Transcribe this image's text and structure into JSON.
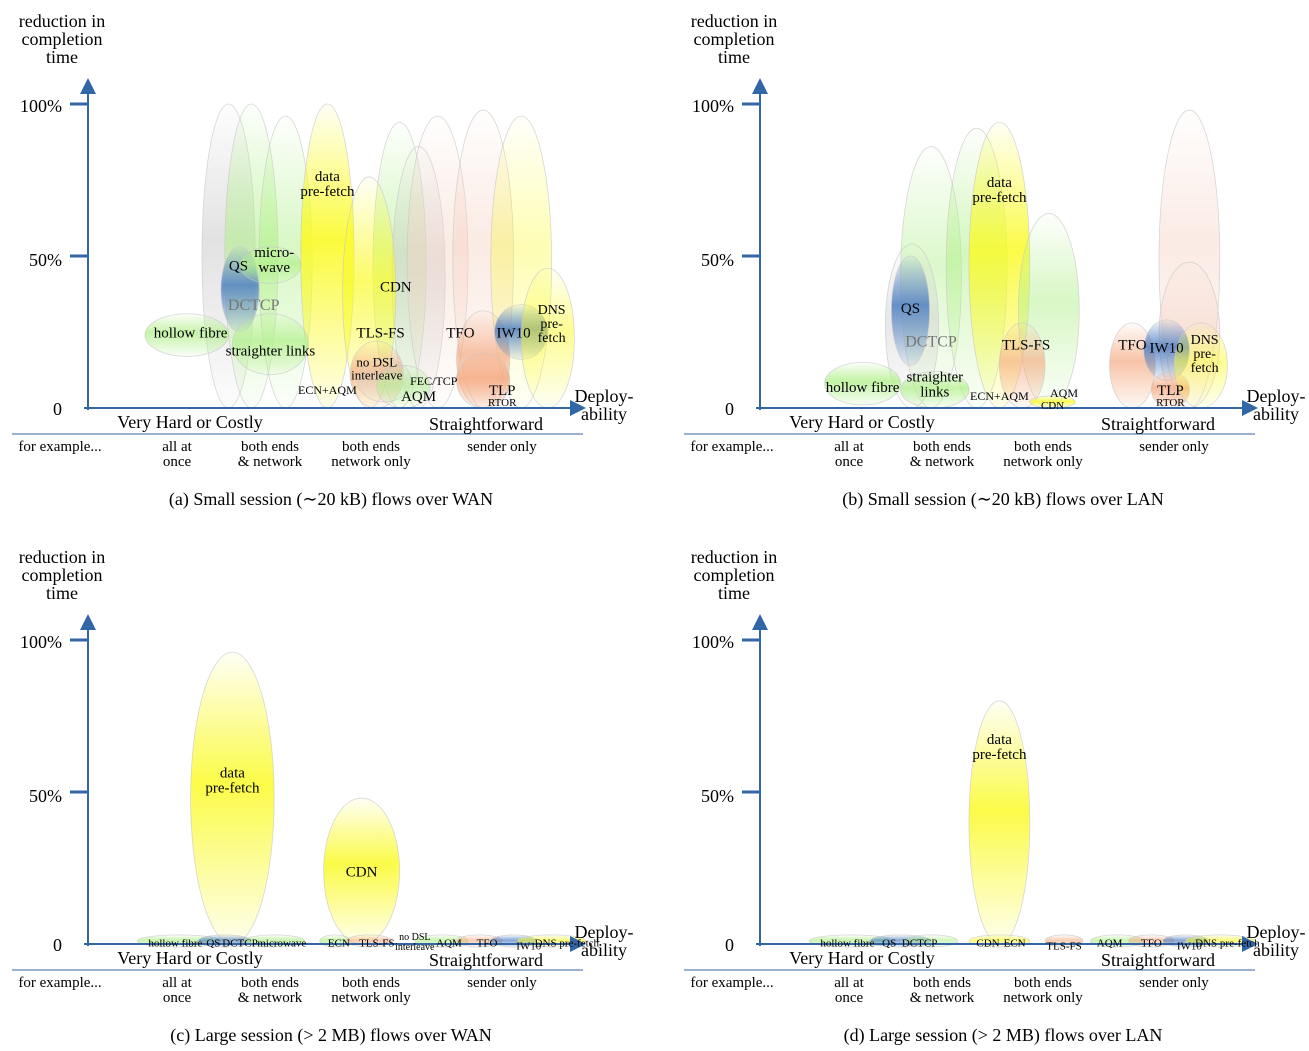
{
  "axes": {
    "y_title_lines": [
      "reduction in",
      "completion",
      "time"
    ],
    "y_ticks": [
      "100%",
      "50%",
      "0"
    ],
    "x_title_lines": [
      "Deploy-",
      "ability"
    ],
    "x_left_label": "Very Hard or Costly",
    "x_right_label": "Straightforward",
    "categories": [
      {
        "lines": [
          "for example..."
        ]
      },
      {
        "lines": [
          "all at",
          "once"
        ]
      },
      {
        "lines": [
          "both ends",
          "& network"
        ]
      },
      {
        "lines": [
          "both ends",
          "network only"
        ]
      },
      {
        "lines": [
          "sender only"
        ]
      }
    ]
  },
  "colors": {
    "axis": "#3366a6",
    "green": "#b2f08c",
    "yellow": "#fafa28",
    "orange": "#f5aa82",
    "blue": "#4f7fc2",
    "peach": "#f5d2c3",
    "gray": "#cfcfcf"
  },
  "panels": [
    {
      "caption": "(a) Small session (∼20 kB) flows over WAN",
      "bubbles": [
        {
          "color": "gray",
          "cx": 18.5,
          "cy": 50,
          "rx": 3.5,
          "ry": 50,
          "opacity": 0.6
        },
        {
          "color": "green",
          "cx": 21.5,
          "cy": 50,
          "rx": 3.5,
          "ry": 50,
          "opacity": 0.6
        },
        {
          "color": "green",
          "cx": 41.0,
          "cy": 47,
          "rx": 3.5,
          "ry": 47,
          "opacity": 0.55
        },
        {
          "color": "gray",
          "cx": 43.5,
          "cy": 43,
          "rx": 3.5,
          "ry": 43,
          "opacity": 0.55
        },
        {
          "color": "peach",
          "cx": 46.0,
          "cy": 48,
          "rx": 4.0,
          "ry": 48,
          "opacity": 0.45
        },
        {
          "color": "peach",
          "cx": 52.0,
          "cy": 49,
          "rx": 4.0,
          "ry": 49,
          "opacity": 0.45
        },
        {
          "color": "yellow",
          "cx": 57.0,
          "cy": 48,
          "rx": 4.0,
          "ry": 48,
          "opacity": 0.35
        },
        {
          "color": "green",
          "cx": 26.0,
          "cy": 48,
          "rx": 3.5,
          "ry": 48,
          "opacity": 0.5
        },
        {
          "color": "yellow",
          "cx": 31.5,
          "cy": 50,
          "rx": 3.5,
          "ry": 50,
          "opacity": 0.9
        },
        {
          "color": "yellow",
          "cx": 37.0,
          "cy": 38,
          "rx": 3.5,
          "ry": 38,
          "opacity": 0.7
        },
        {
          "color": "orange",
          "cx": 38.0,
          "cy": 11,
          "rx": 3.5,
          "ry": 11,
          "opacity": 0.7
        },
        {
          "color": "orange",
          "cx": 52.0,
          "cy": 16,
          "rx": 3.5,
          "ry": 16,
          "opacity": 0.7
        },
        {
          "color": "orange",
          "cx": 52.0,
          "cy": 9,
          "rx": 3.5,
          "ry": 9,
          "opacity": 0.8
        },
        {
          "color": "blue",
          "cx": 20.0,
          "cy": 39,
          "rx": 2.5,
          "ry": 14,
          "opacity": 0.85
        },
        {
          "color": "green",
          "cx": 24.0,
          "cy": 47,
          "rx": 4.0,
          "ry": 6,
          "opacity": 0.75
        },
        {
          "color": "green",
          "cx": 13.0,
          "cy": 24,
          "rx": 5.5,
          "ry": 7,
          "opacity": 0.75
        },
        {
          "color": "green",
          "cx": 24.0,
          "cy": 21,
          "rx": 5.0,
          "ry": 10,
          "opacity": 0.75
        },
        {
          "color": "gray",
          "cx": 39.0,
          "cy": 9,
          "rx": 3.5,
          "ry": 7,
          "opacity": 0.4
        },
        {
          "color": "green",
          "cx": 41.5,
          "cy": 7,
          "rx": 3.5,
          "ry": 7,
          "opacity": 0.6
        },
        {
          "color": "blue",
          "cx": 57.0,
          "cy": 25,
          "rx": 3.5,
          "ry": 9,
          "opacity": 0.85
        },
        {
          "color": "yellow",
          "cx": 60.5,
          "cy": 23,
          "rx": 3.5,
          "ry": 23,
          "opacity": 0.5
        }
      ],
      "labels": [
        {
          "lines": [
            "data",
            "pre-fetch"
          ],
          "x": 31.5,
          "y": 74,
          "size": 15
        },
        {
          "lines": [
            "QS"
          ],
          "x": 19.8,
          "y": 47,
          "size": 15
        },
        {
          "lines": [
            "micro-",
            "wave"
          ],
          "x": 24.5,
          "y": 49,
          "size": 15
        },
        {
          "lines": [
            "DCTCP"
          ],
          "x": 21.8,
          "y": 34,
          "size": 16,
          "fill": "#777777"
        },
        {
          "lines": [
            "hollow fibre"
          ],
          "x": 13.5,
          "y": 25,
          "size": 15
        },
        {
          "lines": [
            "straighter links"
          ],
          "x": 24.0,
          "y": 19,
          "size": 15
        },
        {
          "lines": [
            "CDN"
          ],
          "x": 40.5,
          "y": 40,
          "size": 15
        },
        {
          "lines": [
            "TLS-FS"
          ],
          "x": 38.5,
          "y": 25,
          "size": 15
        },
        {
          "lines": [
            "no DSL",
            "interleave"
          ],
          "x": 38.0,
          "y": 13,
          "size": 13
        },
        {
          "lines": [
            "ECN+AQM"
          ],
          "x": 31.5,
          "y": 6,
          "size": 12
        },
        {
          "lines": [
            "FEC/TCP"
          ],
          "x": 45.5,
          "y": 9,
          "size": 12
        },
        {
          "lines": [
            "AQM"
          ],
          "x": 43.5,
          "y": 4,
          "size": 15
        },
        {
          "lines": [
            "TFO"
          ],
          "x": 49.0,
          "y": 25,
          "size": 15
        },
        {
          "lines": [
            "IW10"
          ],
          "x": 56.0,
          "y": 25,
          "size": 15
        },
        {
          "lines": [
            "DNS",
            "pre-",
            "fetch"
          ],
          "x": 61.0,
          "y": 28,
          "size": 14
        },
        {
          "lines": [
            "TLP"
          ],
          "x": 54.5,
          "y": 6,
          "size": 15
        },
        {
          "lines": [
            "RTOR"
          ],
          "x": 54.5,
          "y": 2,
          "size": 11
        }
      ]
    },
    {
      "caption": "(b) Small session (∼20 kB) flows over LAN",
      "bubbles": [
        {
          "color": "green",
          "cx": 22.5,
          "cy": 43,
          "rx": 4.0,
          "ry": 43,
          "opacity": 0.45
        },
        {
          "color": "gray",
          "cx": 20.0,
          "cy": 27,
          "rx": 3.5,
          "ry": 27,
          "opacity": 0.5
        },
        {
          "color": "green",
          "cx": 28.5,
          "cy": 46,
          "rx": 4.0,
          "ry": 46,
          "opacity": 0.55
        },
        {
          "color": "yellow",
          "cx": 31.5,
          "cy": 47,
          "rx": 4.0,
          "ry": 47,
          "opacity": 0.85
        },
        {
          "color": "green",
          "cx": 38.0,
          "cy": 32,
          "rx": 4.0,
          "ry": 32,
          "opacity": 0.5
        },
        {
          "color": "peach",
          "cx": 56.5,
          "cy": 49,
          "rx": 4.0,
          "ry": 49,
          "opacity": 0.45
        },
        {
          "color": "peach",
          "cx": 56.5,
          "cy": 24,
          "rx": 4.0,
          "ry": 24,
          "opacity": 0.5
        },
        {
          "color": "blue",
          "cx": 19.8,
          "cy": 32,
          "rx": 2.5,
          "ry": 18,
          "opacity": 0.85
        },
        {
          "color": "green",
          "cx": 13.5,
          "cy": 8,
          "rx": 5.0,
          "ry": 7,
          "opacity": 0.8
        },
        {
          "color": "green",
          "cx": 23.0,
          "cy": 6,
          "rx": 4.5,
          "ry": 6,
          "opacity": 0.75
        },
        {
          "color": "orange",
          "cx": 34.5,
          "cy": 14,
          "rx": 3.0,
          "ry": 14,
          "opacity": 0.65
        },
        {
          "color": "yellow",
          "cx": 38.5,
          "cy": 2,
          "rx": 3.0,
          "ry": 2,
          "opacity": 0.8
        },
        {
          "color": "orange",
          "cx": 49.0,
          "cy": 14,
          "rx": 3.0,
          "ry": 14,
          "opacity": 0.7
        },
        {
          "color": "blue",
          "cx": 53.5,
          "cy": 19,
          "rx": 3.0,
          "ry": 10,
          "opacity": 0.85
        },
        {
          "color": "orange",
          "cx": 54.0,
          "cy": 6,
          "rx": 2.5,
          "ry": 6,
          "opacity": 0.8
        },
        {
          "color": "yellow",
          "cx": 58.0,
          "cy": 14,
          "rx": 3.5,
          "ry": 14,
          "opacity": 0.5
        }
      ],
      "labels": [
        {
          "lines": [
            "data",
            "pre-fetch"
          ],
          "x": 31.5,
          "y": 72,
          "size": 15
        },
        {
          "lines": [
            "QS"
          ],
          "x": 19.8,
          "y": 33,
          "size": 15
        },
        {
          "lines": [
            "DCTCP"
          ],
          "x": 22.5,
          "y": 22,
          "size": 16,
          "fill": "#777777"
        },
        {
          "lines": [
            "hollow fibre"
          ],
          "x": 13.5,
          "y": 7,
          "size": 15
        },
        {
          "lines": [
            "straighter",
            "links"
          ],
          "x": 23.0,
          "y": 8,
          "size": 15
        },
        {
          "lines": [
            "ECN+AQM"
          ],
          "x": 31.5,
          "y": 4,
          "size": 12
        },
        {
          "lines": [
            "TLS-FS"
          ],
          "x": 35.0,
          "y": 21,
          "size": 15
        },
        {
          "lines": [
            "AQM"
          ],
          "x": 40.0,
          "y": 5,
          "size": 12
        },
        {
          "lines": [
            "CDN"
          ],
          "x": 38.5,
          "y": 1,
          "size": 11
        },
        {
          "lines": [
            "TFO"
          ],
          "x": 49.0,
          "y": 21,
          "size": 15
        },
        {
          "lines": [
            "IW10"
          ],
          "x": 53.5,
          "y": 20,
          "size": 15
        },
        {
          "lines": [
            "DNS",
            "pre-",
            "fetch"
          ],
          "x": 58.5,
          "y": 18,
          "size": 14
        },
        {
          "lines": [
            "TLP"
          ],
          "x": 54.0,
          "y": 6,
          "size": 15
        },
        {
          "lines": [
            "RTOR"
          ],
          "x": 54.0,
          "y": 2,
          "size": 11
        }
      ]
    },
    {
      "caption": "(c) Large session (> 2 MB) flows over WAN",
      "bubbles": [
        {
          "color": "yellow",
          "cx": 19.0,
          "cy": 48,
          "rx": 5.5,
          "ry": 48,
          "opacity": 0.85
        },
        {
          "color": "yellow",
          "cx": 36.0,
          "cy": 24,
          "rx": 5.0,
          "ry": 24,
          "opacity": 0.85
        },
        {
          "color": "green",
          "cx": 12.0,
          "cy": 1,
          "rx": 5.5,
          "ry": 2,
          "opacity": 0.7
        },
        {
          "color": "blue",
          "cx": 18.0,
          "cy": 1,
          "rx": 3.5,
          "ry": 2,
          "opacity": 0.7
        },
        {
          "color": "green",
          "cx": 24.5,
          "cy": 1,
          "rx": 4.0,
          "ry": 2,
          "opacity": 0.7
        },
        {
          "color": "green",
          "cx": 32.5,
          "cy": 1,
          "rx": 2.0,
          "ry": 2,
          "opacity": 0.7
        },
        {
          "color": "orange",
          "cx": 37.0,
          "cy": 1,
          "rx": 3.0,
          "ry": 2,
          "opacity": 0.6
        },
        {
          "color": "green",
          "cx": 46.5,
          "cy": 1,
          "rx": 3.5,
          "ry": 2,
          "opacity": 0.7
        },
        {
          "color": "orange",
          "cx": 51.5,
          "cy": 1,
          "rx": 3.0,
          "ry": 2,
          "opacity": 0.6
        },
        {
          "color": "blue",
          "cx": 56.0,
          "cy": 1,
          "rx": 3.0,
          "ry": 2,
          "opacity": 0.7
        },
        {
          "color": "yellow",
          "cx": 61.0,
          "cy": 1,
          "rx": 4.5,
          "ry": 2,
          "opacity": 0.6
        }
      ],
      "labels": [
        {
          "lines": [
            "data",
            "pre-fetch"
          ],
          "x": 19.0,
          "y": 54,
          "size": 15
        },
        {
          "lines": [
            "CDN"
          ],
          "x": 36.0,
          "y": 24,
          "size": 15
        },
        {
          "lines": [
            "hollow fibre"
          ],
          "x": 11.5,
          "y": 0.5,
          "size": 11
        },
        {
          "lines": [
            "QS"
          ],
          "x": 16.5,
          "y": 0.5,
          "size": 11
        },
        {
          "lines": [
            "DCTCP"
          ],
          "x": 20.0,
          "y": 0.5,
          "size": 11
        },
        {
          "lines": [
            "microwave"
          ],
          "x": 25.5,
          "y": 0.5,
          "size": 11
        },
        {
          "lines": [
            "ECN"
          ],
          "x": 33.0,
          "y": 0.5,
          "size": 11
        },
        {
          "lines": [
            "TLS-FS"
          ],
          "x": 38.0,
          "y": 0.5,
          "size": 11
        },
        {
          "lines": [
            "no DSL",
            "interleave"
          ],
          "x": 43.0,
          "y": 0.8,
          "size": 10
        },
        {
          "lines": [
            "AQM"
          ],
          "x": 47.5,
          "y": 0.5,
          "size": 11
        },
        {
          "lines": [
            "TFO"
          ],
          "x": 52.5,
          "y": 0.5,
          "size": 11
        },
        {
          "lines": [
            "IW10"
          ],
          "x": 58.0,
          "y": -0.5,
          "size": 11
        },
        {
          "lines": [
            "DNS pre-fetch"
          ],
          "x": 63.0,
          "y": 0.5,
          "size": 11
        }
      ]
    },
    {
      "caption": "(d) Large session (> 2 MB) flows over LAN",
      "bubbles": [
        {
          "color": "yellow",
          "cx": 31.5,
          "cy": 40,
          "rx": 4.0,
          "ry": 40,
          "opacity": 0.85
        },
        {
          "color": "green",
          "cx": 12.0,
          "cy": 1,
          "rx": 5.5,
          "ry": 2,
          "opacity": 0.7
        },
        {
          "color": "blue",
          "cx": 18.5,
          "cy": 1,
          "rx": 4.0,
          "ry": 2,
          "opacity": 0.7
        },
        {
          "color": "green",
          "cx": 22.5,
          "cy": 1,
          "rx": 3.5,
          "ry": 2,
          "opacity": 0.6
        },
        {
          "color": "yellow",
          "cx": 31.5,
          "cy": 1,
          "rx": 4.0,
          "ry": 2,
          "opacity": 0.6
        },
        {
          "color": "orange",
          "cx": 40.0,
          "cy": 1,
          "rx": 2.5,
          "ry": 2,
          "opacity": 0.6
        },
        {
          "color": "green",
          "cx": 47.0,
          "cy": 1,
          "rx": 3.5,
          "ry": 2,
          "opacity": 0.7
        },
        {
          "color": "orange",
          "cx": 51.5,
          "cy": 1,
          "rx": 3.0,
          "ry": 2,
          "opacity": 0.6
        },
        {
          "color": "blue",
          "cx": 56.0,
          "cy": 1,
          "rx": 3.0,
          "ry": 2,
          "opacity": 0.7
        },
        {
          "color": "yellow",
          "cx": 60.5,
          "cy": 1,
          "rx": 4.5,
          "ry": 2,
          "opacity": 0.6
        }
      ],
      "labels": [
        {
          "lines": [
            "data",
            "pre-fetch"
          ],
          "x": 31.5,
          "y": 65,
          "size": 15
        },
        {
          "lines": [
            "hollow fibre"
          ],
          "x": 11.5,
          "y": 0.5,
          "size": 11
        },
        {
          "lines": [
            "QS"
          ],
          "x": 17.0,
          "y": 0.5,
          "size": 11
        },
        {
          "lines": [
            "DCTCP"
          ],
          "x": 21.0,
          "y": 0.5,
          "size": 11
        },
        {
          "lines": [
            "CDN"
          ],
          "x": 30.0,
          "y": 0.5,
          "size": 11
        },
        {
          "lines": [
            "ECN"
          ],
          "x": 33.5,
          "y": 0.5,
          "size": 11
        },
        {
          "lines": [
            "TLS-FS"
          ],
          "x": 40.0,
          "y": -0.5,
          "size": 11
        },
        {
          "lines": [
            "AQM"
          ],
          "x": 46.0,
          "y": 0.5,
          "size": 11
        },
        {
          "lines": [
            "TFO"
          ],
          "x": 51.5,
          "y": 0.5,
          "size": 11
        },
        {
          "lines": [
            "IW10"
          ],
          "x": 56.5,
          "y": -0.5,
          "size": 11
        },
        {
          "lines": [
            "DNS pre-fetch"
          ],
          "x": 61.5,
          "y": 0.5,
          "size": 11
        }
      ]
    }
  ]
}
